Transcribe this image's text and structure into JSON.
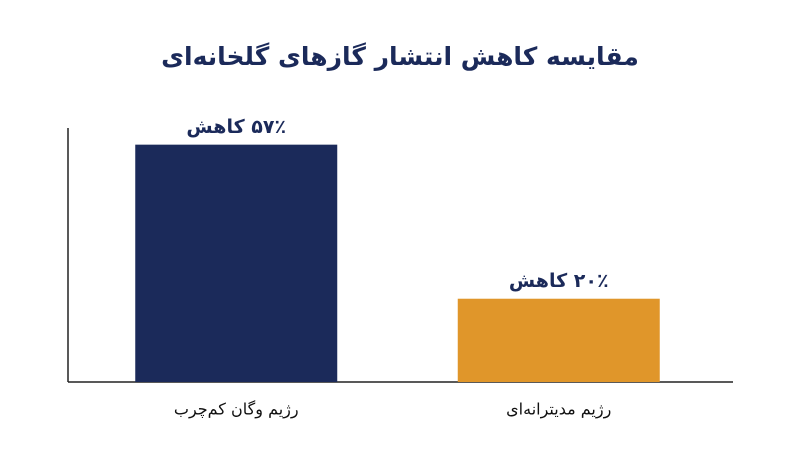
{
  "chart_data": {
    "type": "bar",
    "title": "مقایسه کاهش انتشار گازهای گلخانه‌ای",
    "categories": [
      "رژیم وگان کم‌چرب",
      "رژیم مدیترانه‌ای"
    ],
    "values": [
      57,
      20
    ],
    "value_labels": [
      "۵۷٪ کاهش",
      "۲۰٪ کاهش"
    ],
    "colors": [
      "#1b2a5a",
      "#e0962a"
    ],
    "ylim": [
      0,
      61
    ]
  }
}
